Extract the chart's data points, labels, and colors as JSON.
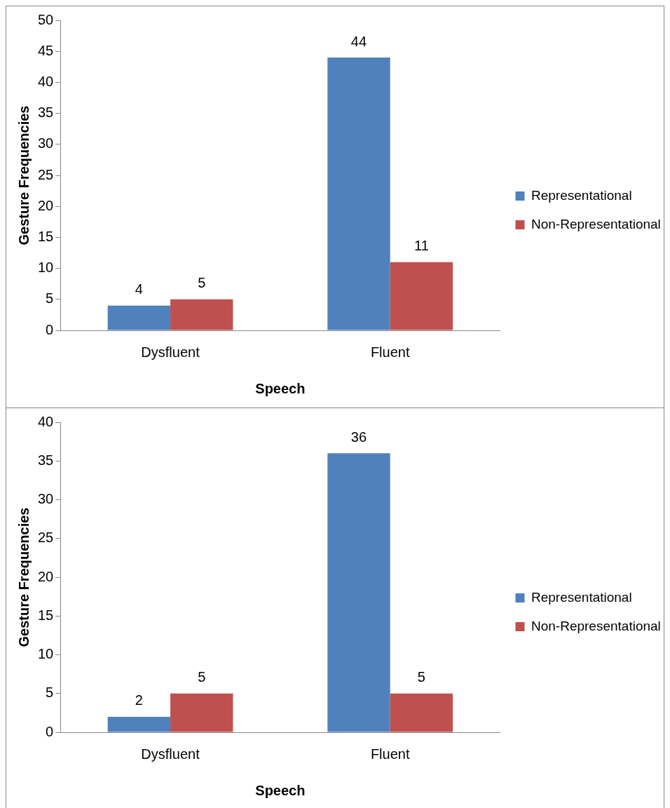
{
  "chart_data": [
    {
      "type": "bar",
      "categories": [
        "Dysfluent",
        "Fluent"
      ],
      "xlabel": "Speech",
      "ylabel": "Gesture Frequencies",
      "ylim": [
        0,
        50
      ],
      "yticks": [
        0,
        5,
        10,
        15,
        20,
        25,
        30,
        35,
        40,
        45,
        50
      ],
      "data_labels": true,
      "legend": "right",
      "series": [
        {
          "name": "Representational",
          "color": "#4f81bd",
          "values": [
            4,
            44
          ]
        },
        {
          "name": "Non-Representational",
          "color": "#c0504d",
          "values": [
            5,
            11
          ]
        }
      ]
    },
    {
      "type": "bar",
      "categories": [
        "Dysfluent",
        "Fluent"
      ],
      "xlabel": "Speech",
      "ylabel": "Gesture Frequencies",
      "ylim": [
        0,
        40
      ],
      "yticks": [
        0,
        5,
        10,
        15,
        20,
        25,
        30,
        35,
        40
      ],
      "data_labels": true,
      "legend": "right",
      "series": [
        {
          "name": "Representational",
          "color": "#4f81bd",
          "values": [
            2,
            36
          ]
        },
        {
          "name": "Non-Representational",
          "color": "#c0504d",
          "values": [
            5,
            5
          ]
        }
      ]
    }
  ]
}
